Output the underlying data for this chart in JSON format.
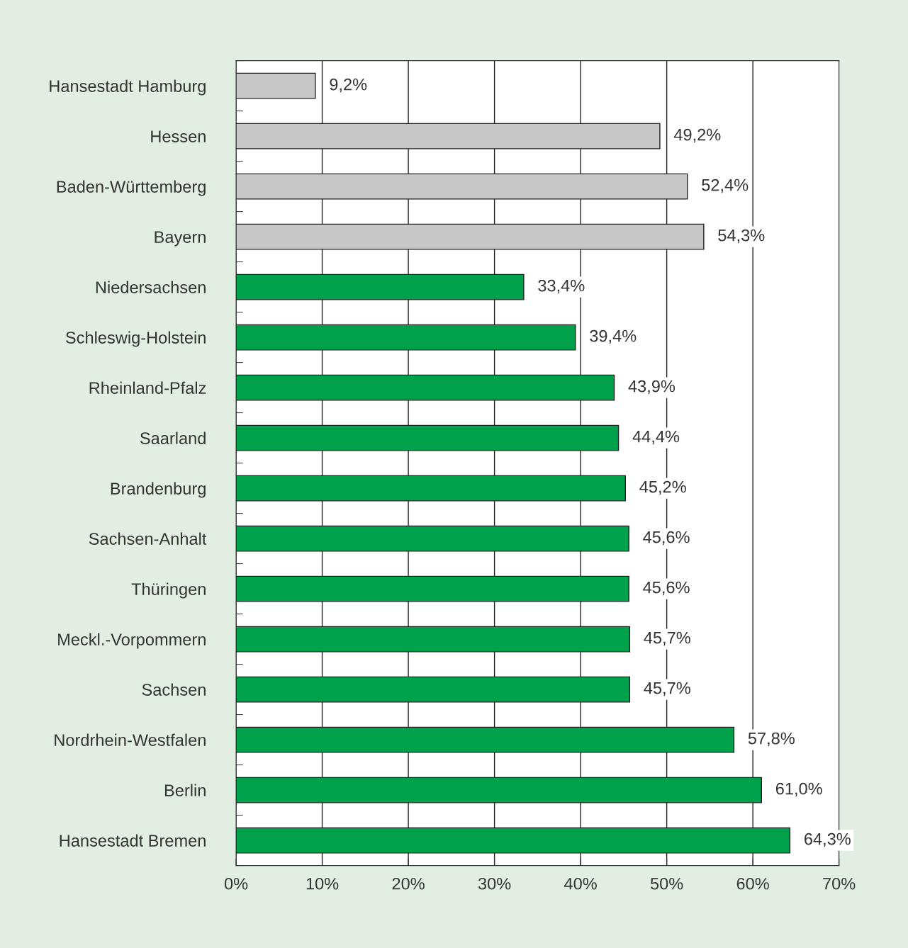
{
  "chart_data": {
    "type": "bar",
    "orientation": "horizontal",
    "categories": [
      "Hansestadt Hamburg",
      "Hessen",
      "Baden-Württemberg",
      "Bayern",
      "Niedersachsen",
      "Schleswig-Holstein",
      "Rheinland-Pfalz",
      "Saarland",
      "Brandenburg",
      "Sachsen-Anhalt",
      "Thüringen",
      "Meckl.-Vorpommern",
      "Sachsen",
      "Nordrhein-Westfalen",
      "Berlin",
      "Hansestadt Bremen"
    ],
    "values": [
      9.2,
      49.2,
      52.4,
      54.3,
      33.4,
      39.4,
      43.9,
      44.4,
      45.2,
      45.6,
      45.6,
      45.7,
      45.7,
      57.8,
      61.0,
      64.3
    ],
    "value_labels": [
      "9,2%",
      "49,2%",
      "52,4%",
      "54,3%",
      "33,4%",
      "39,4%",
      "43,9%",
      "44,4%",
      "45,2%",
      "45,6%",
      "45,6%",
      "45,7%",
      "45,7%",
      "57,8%",
      "61,0%",
      "64,3%"
    ],
    "colors": [
      "#c8c8c8",
      "#c8c8c8",
      "#c8c8c8",
      "#c8c8c8",
      "#00a14b",
      "#00a14b",
      "#00a14b",
      "#00a14b",
      "#00a14b",
      "#00a14b",
      "#00a14b",
      "#00a14b",
      "#00a14b",
      "#00a14b",
      "#00a14b",
      "#00a14b"
    ],
    "xlim": [
      0,
      70
    ],
    "xticks": [
      {
        "value": 0,
        "label": "0%"
      },
      {
        "value": 10,
        "label": "10%"
      },
      {
        "value": 20,
        "label": "20%"
      },
      {
        "value": 30,
        "label": "30%"
      },
      {
        "value": 40,
        "label": "40%"
      },
      {
        "value": 50,
        "label": "50%"
      },
      {
        "value": 60,
        "label": "60%"
      },
      {
        "value": 70,
        "label": "70%"
      }
    ],
    "grid": "x",
    "legend": false
  }
}
